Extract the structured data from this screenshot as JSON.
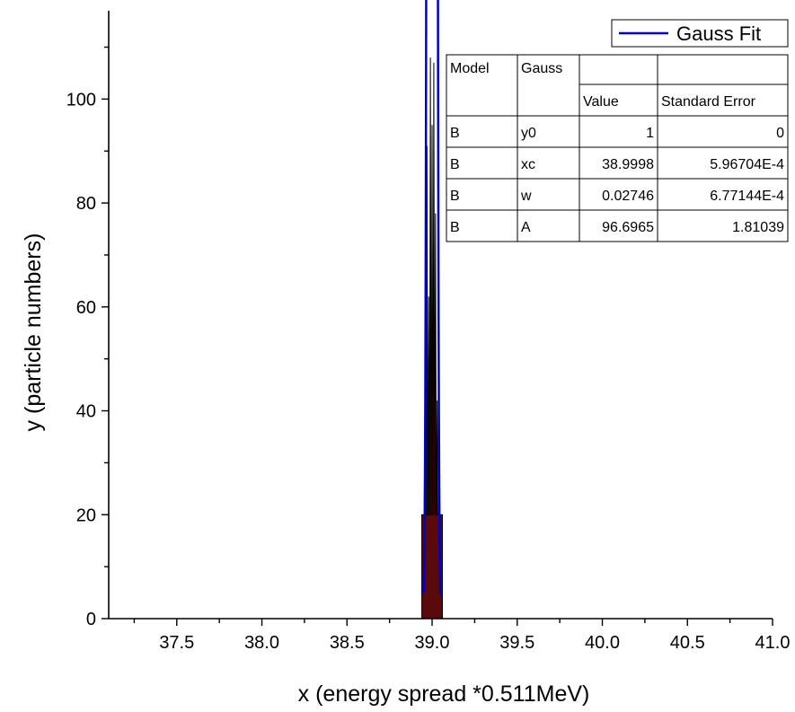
{
  "chart_data": {
    "type": "bar",
    "title": "",
    "xlabel": "x (energy spread *0.511MeV)",
    "ylabel": "y (particle numbers)",
    "xlim": [
      37.1,
      41.0
    ],
    "ylim": [
      0,
      117
    ],
    "x_ticks": [
      "37.5",
      "38.0",
      "38.5",
      "39.0",
      "39.5",
      "40.0",
      "40.5",
      "41.0"
    ],
    "y_ticks": [
      "0",
      "20",
      "40",
      "60",
      "80",
      "100"
    ],
    "histogram": {
      "name": "",
      "color": "#000000",
      "fill": "#5a0a0a",
      "x": [
        38.95,
        38.96,
        38.97,
        38.98,
        38.99,
        39.0,
        39.01,
        39.02,
        39.03,
        39.04,
        39.05
      ],
      "values": [
        20,
        40,
        91,
        62,
        108,
        95,
        107,
        78,
        42,
        27,
        18
      ]
    },
    "fit": {
      "name": "Gauss Fit",
      "color": "#0000cc",
      "y0": 1,
      "xc": 38.9998,
      "w": 0.02746,
      "A": 96.6965,
      "x_range": [
        38.95,
        39.05
      ]
    },
    "legend": {
      "position": "top-right",
      "entries": [
        "Gauss Fit"
      ]
    },
    "grid": false
  },
  "fit_table": {
    "header": [
      "Model",
      "Gauss",
      "",
      ""
    ],
    "subheader": [
      "",
      "",
      "Value",
      "Standard Error"
    ],
    "rows": [
      [
        "B",
        "y0",
        "1",
        "0"
      ],
      [
        "B",
        "xc",
        "38.9998",
        "5.96704E-4"
      ],
      [
        "B",
        "w",
        "0.02746",
        "6.77144E-4"
      ],
      [
        "B",
        "A",
        "96.6965",
        "1.81039"
      ]
    ]
  }
}
